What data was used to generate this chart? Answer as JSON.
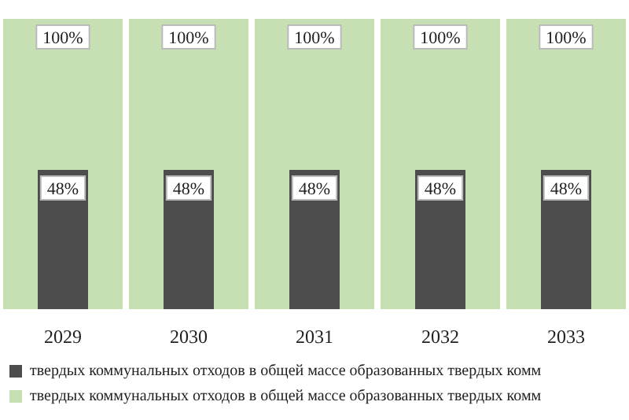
{
  "chart_data": {
    "type": "bar",
    "categories": [
      "2029",
      "2030",
      "2031",
      "2032",
      "2033"
    ],
    "series": [
      {
        "name": "твердых коммунальных отходов в общей массе образованных твердых комм",
        "color": "#4d4d4d",
        "values": [
          48,
          48,
          48,
          48,
          48
        ],
        "value_labels": [
          "48%",
          "48%",
          "48%",
          "48%",
          "48%"
        ]
      },
      {
        "name": "твердых коммунальных отходов в общей массе образованных твердых комм",
        "color": "#c6e0b4",
        "values": [
          100,
          100,
          100,
          100,
          100
        ],
        "value_labels": [
          "100%",
          "100%",
          "100%",
          "100%",
          "100%"
        ]
      }
    ],
    "legend": "bottom",
    "grid": false
  }
}
